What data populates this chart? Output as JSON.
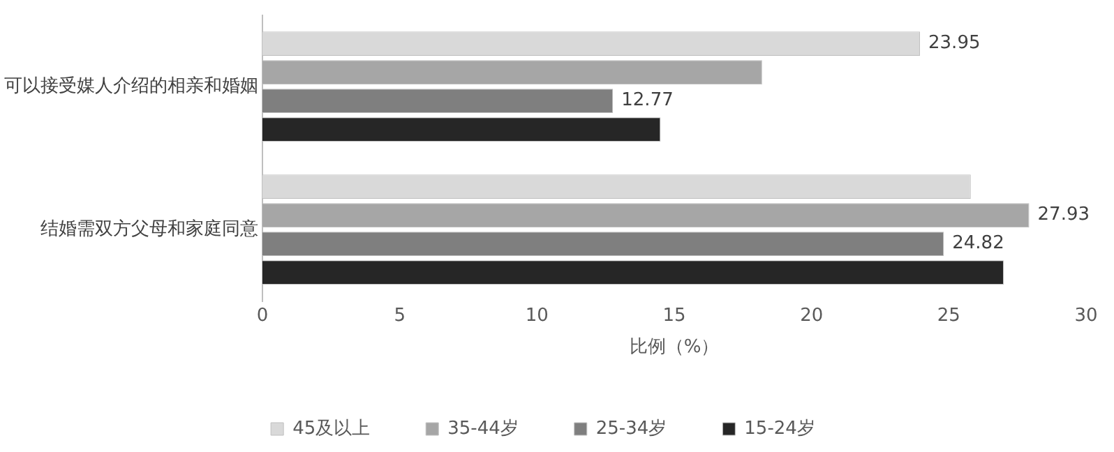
{
  "chart_data": {
    "type": "bar",
    "orientation": "horizontal",
    "xlabel": "比例（%）",
    "categories": [
      "可以接受媒人介绍的相亲和婚姻",
      "结婚需双方父母和家庭同意"
    ],
    "series": [
      {
        "name": "45及以上",
        "color": "#d9d9d9",
        "values": [
          23.95,
          25.8
        ],
        "value_labels": [
          "23.95",
          null
        ]
      },
      {
        "name": "35-44岁",
        "color": "#a6a6a6",
        "values": [
          18.2,
          27.93
        ],
        "value_labels": [
          null,
          "27.93"
        ]
      },
      {
        "name": "25-34岁",
        "color": "#7f7f7f",
        "values": [
          12.77,
          24.82
        ],
        "value_labels": [
          "12.77",
          "24.82"
        ]
      },
      {
        "name": "15-24岁",
        "color": "#262626",
        "values": [
          14.5,
          27.0
        ],
        "value_labels": [
          null,
          null
        ]
      }
    ],
    "xlim": [
      0,
      30
    ],
    "xticks": [
      0,
      5,
      10,
      15,
      20,
      25,
      30
    ],
    "grid": false,
    "legend": "bottom"
  }
}
